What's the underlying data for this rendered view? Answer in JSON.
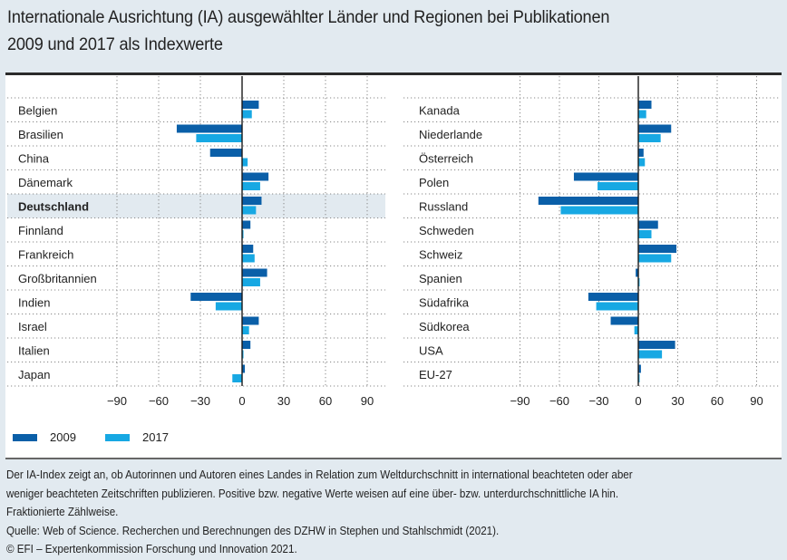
{
  "title_line1": "Internationale Ausrichtung (IA) ausgewählter Länder und Regionen bei Publikationen",
  "title_line2": "2009 und 2017 als Indexwerte",
  "colors": {
    "series_2009": "#0a5fa8",
    "series_2017": "#17a8e3",
    "highlight": "#e2eaf0",
    "axis": "#1a1a1a",
    "grid": "#888888"
  },
  "legend": [
    {
      "label": "2009",
      "color": "#0a5fa8"
    },
    {
      "label": "2017",
      "color": "#17a8e3"
    }
  ],
  "chart_data": [
    {
      "type": "bar",
      "orientation": "horizontal",
      "title": "",
      "xlabel": "",
      "ylabel": "",
      "xlim": [
        -100,
        100
      ],
      "xticks": [
        -90,
        -60,
        -30,
        0,
        30,
        60,
        90
      ],
      "grid": true,
      "legend": "bottom-left",
      "highlighted_category": "Deutschland",
      "categories": [
        "Belgien",
        "Brasilien",
        "China",
        "Dänemark",
        "Deutschland",
        "Finnland",
        "Frankreich",
        "Großbritannien",
        "Indien",
        "Israel",
        "Italien",
        "Japan"
      ],
      "series": [
        {
          "name": "2009",
          "values": [
            12,
            -47,
            -23,
            19,
            14,
            6,
            8,
            18,
            -37,
            12,
            6,
            2
          ]
        },
        {
          "name": "2017",
          "values": [
            7,
            -33,
            4,
            13,
            10,
            1,
            9,
            13,
            -19,
            5,
            1,
            -7
          ]
        }
      ]
    },
    {
      "type": "bar",
      "orientation": "horizontal",
      "title": "",
      "xlabel": "",
      "ylabel": "",
      "xlim": [
        -100,
        100
      ],
      "xticks": [
        -90,
        -60,
        -30,
        0,
        30,
        60,
        90
      ],
      "grid": true,
      "legend": "bottom-left",
      "categories": [
        "Kanada",
        "Niederlande",
        "Österreich",
        "Polen",
        "Russland",
        "Schweden",
        "Schweiz",
        "Spanien",
        "Südafrika",
        "Südkorea",
        "USA",
        "EU-27"
      ],
      "series": [
        {
          "name": "2009",
          "values": [
            10,
            25,
            4,
            -49,
            -76,
            15,
            29,
            -2,
            -38,
            -21,
            28,
            2
          ]
        },
        {
          "name": "2017",
          "values": [
            6,
            17,
            5,
            -31,
            -59,
            10,
            25,
            1,
            -32,
            -3,
            18,
            1
          ]
        }
      ]
    }
  ],
  "footer": {
    "note_line1": "Der IA-Index zeigt an, ob Autorinnen und Autoren eines Landes in Relation zum Weltdurchschnitt in international beachteten oder aber",
    "note_line2": "weniger beachteten Zeitschriften publizieren. Positive bzw. negative Werte weisen auf eine über- bzw. unterdurchschnittliche IA hin.",
    "note_line3": "Fraktionierte Zählweise.",
    "source": "Quelle: Web of Science. Recherchen und Berechnungen des DZHW in Stephen und Stahlschmidt (2021).",
    "copyright": "© EFI – Expertenkommission Forschung und Innovation 2021."
  }
}
